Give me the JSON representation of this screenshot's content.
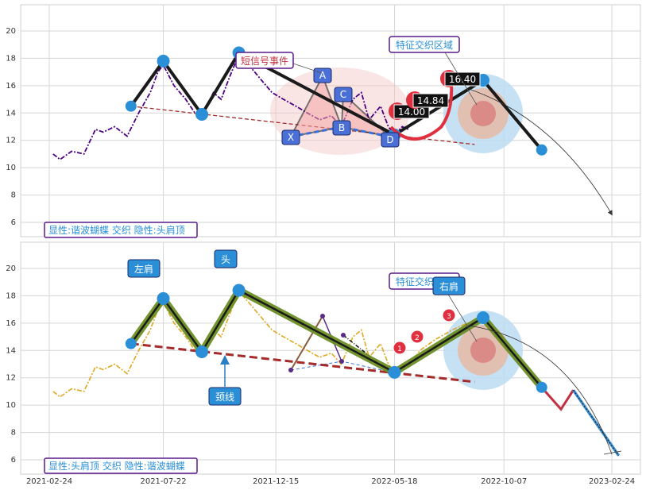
{
  "chart_data": [
    {
      "type": "line",
      "panel": "top",
      "x_dates": [
        "2021-02-24",
        "2021-07-22",
        "2021-12-15",
        "2022-05-18",
        "2022-10-07",
        "2023-02-24"
      ],
      "ylim": [
        5,
        22
      ],
      "yticks": [
        6,
        8,
        10,
        12,
        14,
        16,
        18,
        20
      ],
      "grid": true,
      "price_series": [
        [
          "2021-03-01",
          11.0
        ],
        [
          "2021-03-10",
          10.6
        ],
        [
          "2021-03-25",
          11.2
        ],
        [
          "2021-04-10",
          11.0
        ],
        [
          "2021-04-25",
          12.8
        ],
        [
          "2021-05-05",
          12.6
        ],
        [
          "2021-05-20",
          13.0
        ],
        [
          "2021-06-05",
          12.3
        ],
        [
          "2021-06-20",
          14.0
        ],
        [
          "2021-07-05",
          15.5
        ],
        [
          "2021-07-15",
          17.0
        ],
        [
          "2021-07-22",
          17.5
        ],
        [
          "2021-08-05",
          16.0
        ],
        [
          "2021-08-20",
          15.0
        ],
        [
          "2021-09-01",
          14.0
        ],
        [
          "2021-09-10",
          13.8
        ],
        [
          "2021-09-25",
          15.5
        ],
        [
          "2021-10-05",
          15.0
        ],
        [
          "2021-10-15",
          16.5
        ],
        [
          "2021-10-28",
          18.3
        ],
        [
          "2021-11-10",
          17.5
        ],
        [
          "2021-11-25",
          16.5
        ],
        [
          "2021-12-10",
          15.5
        ],
        [
          "2021-12-25",
          15.0
        ],
        [
          "2022-01-10",
          14.5
        ],
        [
          "2022-01-25",
          14.0
        ],
        [
          "2022-02-10",
          13.5
        ],
        [
          "2022-02-25",
          13.8
        ],
        [
          "2022-03-10",
          13.0
        ],
        [
          "2022-03-25",
          15.0
        ],
        [
          "2022-04-05",
          15.5
        ],
        [
          "2022-04-15",
          13.5
        ],
        [
          "2022-04-30",
          14.5
        ],
        [
          "2022-05-10",
          13.0
        ],
        [
          "2022-05-18",
          12.4
        ],
        [
          "2022-05-28",
          13.0
        ],
        [
          "2022-06-05",
          12.8
        ]
      ],
      "main_path": [
        [
          "2021-06-10",
          14.5
        ],
        [
          "2021-07-22",
          17.8
        ],
        [
          "2021-09-10",
          13.9
        ],
        [
          "2021-10-28",
          18.4
        ],
        [
          "2022-05-18",
          12.4
        ],
        [
          "2022-09-10",
          16.4
        ],
        [
          "2022-11-25",
          11.3
        ]
      ],
      "neckline": [
        [
          "2021-06-10",
          14.5
        ],
        [
          "2022-08-30",
          11.7
        ]
      ],
      "butterfly_points": [
        {
          "label": "X",
          "date": "2022-02-20",
          "value": 12.4
        },
        {
          "label": "A",
          "date": "2022-03-25",
          "value": 16.4
        },
        {
          "label": "B",
          "date": "2022-04-15",
          "value": 12.9
        },
        {
          "label": "C",
          "date": "2022-04-25",
          "value": 14.8
        },
        {
          "label": "D",
          "date": "2022-05-20",
          "value": 12.3
        }
      ],
      "price_tags": [
        "14.00",
        "14.84",
        "16.40"
      ],
      "annotations": {
        "short_signal": "短信号事件",
        "feature_zone": "特征交织区域",
        "legend_text": "显性:谐波蝴蝶 交织 隐性:头肩顶"
      },
      "colors": {
        "price": "#4b0082",
        "main": "#1a1a1a",
        "neckline": "#a52a2a",
        "node": "#2a8fd6",
        "label_box": "#4a6fd6",
        "tag": "#e03040"
      }
    },
    {
      "type": "line",
      "panel": "bottom",
      "x_dates": [
        "2021-02-24",
        "2021-07-22",
        "2021-12-15",
        "2022-05-18",
        "2022-10-07",
        "2023-02-24"
      ],
      "ylim": [
        5,
        22
      ],
      "yticks": [
        6,
        8,
        10,
        12,
        14,
        16,
        18,
        20
      ],
      "grid": true,
      "price_series": [
        [
          "2021-03-01",
          11.0
        ],
        [
          "2021-03-10",
          10.6
        ],
        [
          "2021-03-25",
          11.2
        ],
        [
          "2021-04-10",
          11.0
        ],
        [
          "2021-04-25",
          12.8
        ],
        [
          "2021-05-05",
          12.6
        ],
        [
          "2021-05-20",
          13.0
        ],
        [
          "2021-06-05",
          12.3
        ],
        [
          "2021-06-20",
          14.0
        ],
        [
          "2021-07-05",
          15.5
        ],
        [
          "2021-07-15",
          17.0
        ],
        [
          "2021-07-22",
          17.5
        ],
        [
          "2021-08-05",
          16.0
        ],
        [
          "2021-08-20",
          15.0
        ],
        [
          "2021-09-01",
          14.0
        ],
        [
          "2021-09-10",
          13.8
        ],
        [
          "2021-09-25",
          15.5
        ],
        [
          "2021-10-05",
          15.0
        ],
        [
          "2021-10-15",
          16.5
        ],
        [
          "2021-10-28",
          18.3
        ],
        [
          "2021-11-10",
          17.5
        ],
        [
          "2021-11-25",
          16.5
        ],
        [
          "2021-12-10",
          15.5
        ],
        [
          "2021-12-25",
          15.0
        ],
        [
          "2022-01-10",
          14.5
        ],
        [
          "2022-01-25",
          14.0
        ],
        [
          "2022-02-10",
          13.5
        ],
        [
          "2022-02-25",
          13.8
        ],
        [
          "2022-03-10",
          13.0
        ],
        [
          "2022-03-25",
          15.0
        ],
        [
          "2022-04-05",
          15.5
        ],
        [
          "2022-04-15",
          13.5
        ],
        [
          "2022-04-30",
          14.5
        ],
        [
          "2022-05-10",
          13.0
        ],
        [
          "2022-05-18",
          12.4
        ],
        [
          "2022-05-28",
          13.0
        ],
        [
          "2022-06-05",
          12.8
        ],
        [
          "2022-06-20",
          14.0
        ],
        [
          "2022-07-10",
          14.8
        ],
        [
          "2022-08-01",
          15.5
        ],
        [
          "2022-08-20",
          16.0
        ],
        [
          "2022-09-05",
          16.2
        ]
      ],
      "main_path": [
        [
          "2021-06-10",
          14.5
        ],
        [
          "2021-07-22",
          17.8
        ],
        [
          "2021-09-10",
          13.9
        ],
        [
          "2021-10-28",
          18.4
        ],
        [
          "2022-05-18",
          12.4
        ],
        [
          "2022-09-10",
          16.4
        ],
        [
          "2022-11-25",
          11.3
        ]
      ],
      "projection": [
        [
          "2022-11-25",
          11.3
        ],
        [
          "2022-12-20",
          9.7
        ],
        [
          "2023-01-05",
          11.1
        ],
        [
          "2023-03-05",
          6.3
        ]
      ],
      "neckline": [
        [
          "2021-06-10",
          14.5
        ],
        [
          "2022-08-30",
          11.7
        ]
      ],
      "numbered_points": [
        {
          "label": "1",
          "date": "2022-06-10",
          "value": 14.0
        },
        {
          "label": "2",
          "date": "2022-07-20",
          "value": 14.9
        },
        {
          "label": "3",
          "date": "2022-09-05",
          "value": 16.3
        }
      ],
      "annotations": {
        "left_shoulder": "左肩",
        "head": "头",
        "right_shoulder": "右肩",
        "neckline": "颈线",
        "feature_zone": "特征交织区域",
        "legend_text": "显性:头肩顶 交织 隐性:谐波蝴蝶"
      },
      "colors": {
        "price": "#e0a820",
        "main_outer": "#6b8e23",
        "main_inner": "#1a1a1a",
        "neckline": "#a52a2a",
        "node": "#2a8fd6",
        "tag": "#e03040"
      }
    }
  ]
}
